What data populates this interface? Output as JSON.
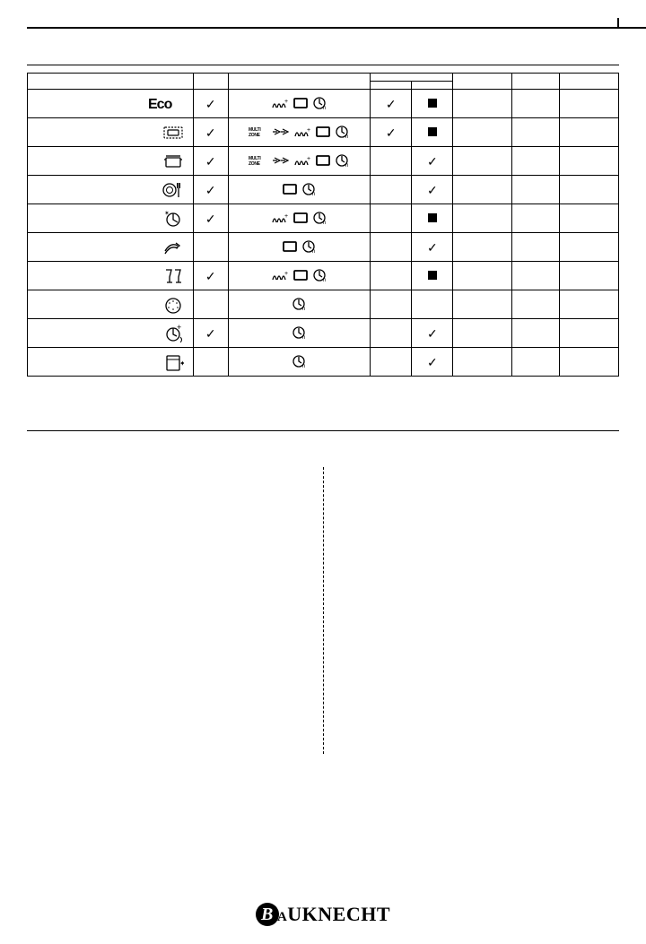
{
  "table": {
    "columns": [
      "program",
      "auto_dose",
      "options",
      "phase_a",
      "phase_b",
      "col6",
      "col7",
      "col8"
    ],
    "col_widths_pct": [
      28,
      6,
      24,
      7,
      7,
      10,
      8,
      10
    ],
    "header_row_height": 34,
    "subheader_row_height": 24,
    "rows": [
      {
        "program_icon": "eco",
        "auto_dose": true,
        "options": [
          "steam",
          "tablet",
          "delay"
        ],
        "phase_a": "check",
        "phase_b": "square",
        "c6": "",
        "c7": "",
        "c8": ""
      },
      {
        "program_icon": "auto_sensor",
        "auto_dose": true,
        "options": [
          "multizone",
          "powerclean",
          "steam",
          "tablet",
          "delay"
        ],
        "phase_a": "check",
        "phase_b": "square",
        "c6": "",
        "c7": "",
        "c8": ""
      },
      {
        "program_icon": "pots",
        "auto_dose": true,
        "options": [
          "multizone",
          "powerclean",
          "steam",
          "tablet",
          "delay"
        ],
        "phase_a": "",
        "phase_b": "check",
        "c6": "",
        "c7": "",
        "c8": ""
      },
      {
        "program_icon": "plate_fork",
        "auto_dose": true,
        "options": [
          "tablet",
          "delay"
        ],
        "phase_a": "",
        "phase_b": "check",
        "c6": "",
        "c7": "",
        "c8": ""
      },
      {
        "program_icon": "night",
        "auto_dose": true,
        "options": [
          "steam",
          "tablet",
          "delay"
        ],
        "phase_a": "",
        "phase_b": "square",
        "c6": "",
        "c7": "",
        "c8": ""
      },
      {
        "program_icon": "rapid",
        "auto_dose": false,
        "options": [
          "tablet",
          "delay"
        ],
        "phase_a": "",
        "phase_b": "check",
        "c6": "",
        "c7": "",
        "c8": ""
      },
      {
        "program_icon": "glasses",
        "auto_dose": true,
        "options": [
          "steam",
          "tablet",
          "delay"
        ],
        "phase_a": "",
        "phase_b": "square",
        "c6": "",
        "c7": "",
        "c8": ""
      },
      {
        "program_icon": "prewash",
        "auto_dose": false,
        "options": [
          "delay"
        ],
        "phase_a": "",
        "phase_b": "",
        "c6": "",
        "c7": "",
        "c8": ""
      },
      {
        "program_icon": "hygiene",
        "auto_dose": true,
        "options": [
          "delay"
        ],
        "phase_a": "",
        "phase_b": "check",
        "c6": "",
        "c7": "",
        "c8": ""
      },
      {
        "program_icon": "selfclean",
        "auto_dose": false,
        "options": [
          "delay"
        ],
        "phase_a": "",
        "phase_b": "check",
        "c6": "",
        "c7": "",
        "c8": ""
      }
    ]
  },
  "footer_brand": "Bauknecht",
  "colors": {
    "ink": "#000000",
    "bg": "#ffffff"
  }
}
